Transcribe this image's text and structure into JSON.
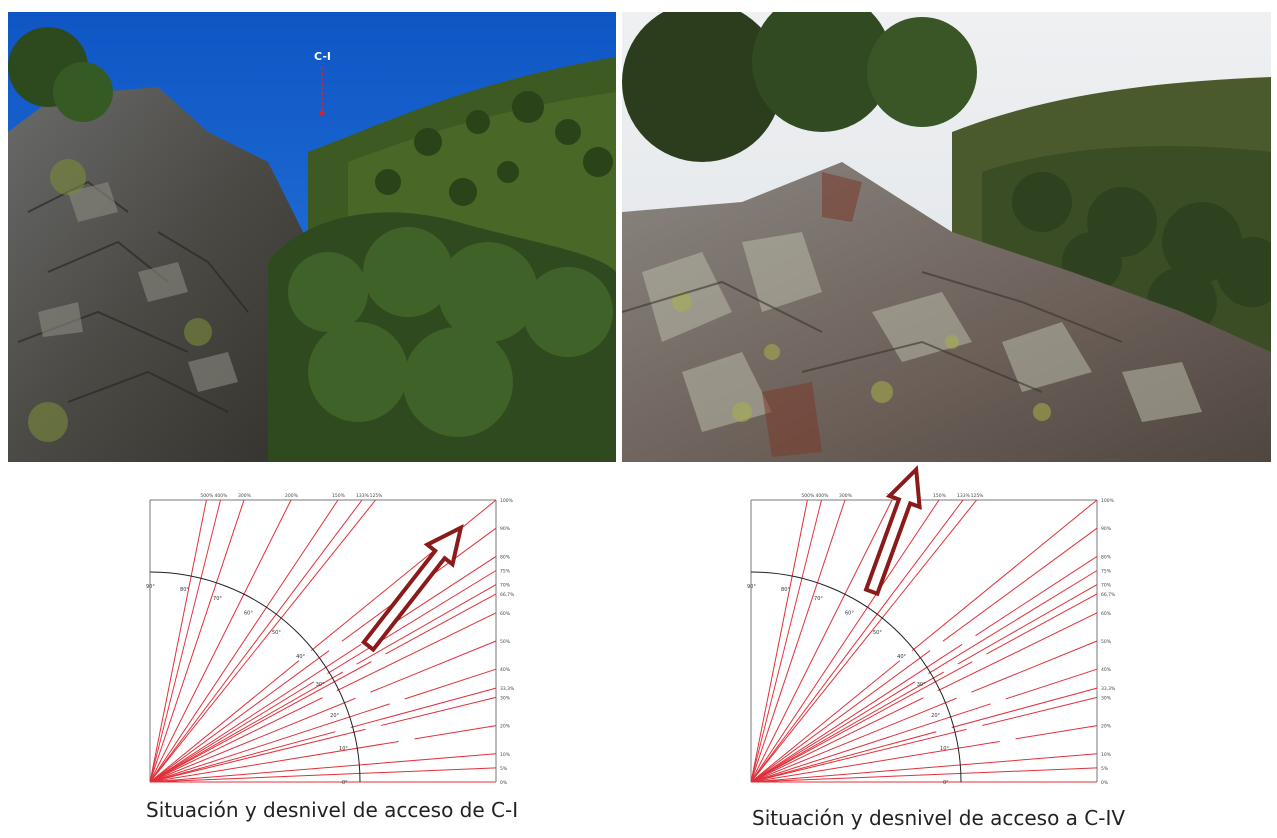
{
  "photos": {
    "left": {
      "marker_label": "C-I"
    },
    "right": {}
  },
  "diagrams": {
    "scale_right": [
      "100%",
      "90%",
      "80%",
      "75%",
      "70%",
      "66,7%",
      "60%",
      "50%",
      "40%",
      "33,3%",
      "30%",
      "20%",
      "10%",
      "5%",
      "0%"
    ],
    "scale_top": [
      "500%",
      "400%",
      "300%",
      "200%",
      "150%",
      "133%",
      "125%"
    ],
    "angle_labels": [
      "90°",
      "80°",
      "70°",
      "60°",
      "50°",
      "40°",
      "30°",
      "20°",
      "10°",
      "0°"
    ],
    "left": {
      "arrow_angle_deg": 52
    },
    "right": {
      "arrow_angle_deg": 70
    }
  },
  "captions": {
    "left": "Situación y desnivel de acceso de C-I",
    "right": "Situación y desnivel de acceso a C-IV"
  },
  "colors": {
    "grid_red": "#e0303a",
    "arrow_red": "#8b1a1a",
    "sky_blue": "#1560c8"
  }
}
